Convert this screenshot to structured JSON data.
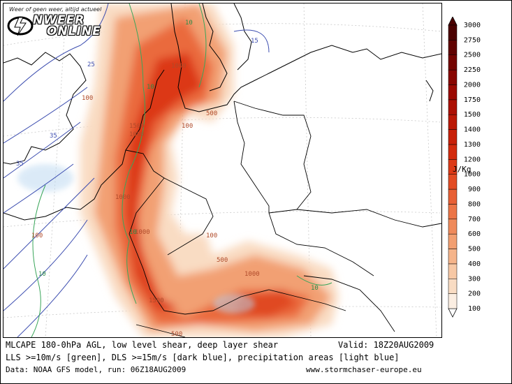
{
  "logo": {
    "tagline": "Weer of geen weer, altijd actueel",
    "line1": "NWEER",
    "line2": "ONLINE"
  },
  "caption": {
    "line1": "MLCAPE 180-0hPa AGL, low level shear, deep layer shear",
    "valid": "Valid: 18Z20AUG2009",
    "line2": "LLS >=10m/s [green], DLS >=15m/s [dark blue], precipitation areas [light blue]",
    "line3": "Data: NOAA GFS model, run: 06Z18AUG2009",
    "source": "www.stormchaser-europe.eu"
  },
  "legend": {
    "unit": "J/Kg",
    "levels": [
      "100",
      "200",
      "300",
      "400",
      "500",
      "600",
      "700",
      "800",
      "900",
      "1000",
      "1200",
      "1300",
      "1400",
      "1500",
      "1750",
      "2000",
      "2250",
      "2500",
      "2750",
      "3000"
    ],
    "colors": [
      "#fbeee2",
      "#f9dcc3",
      "#f7c8a5",
      "#f5b48a",
      "#f29f71",
      "#ef8a5b",
      "#ec7547",
      "#e86035",
      "#e34c24",
      "#dd3a17",
      "#d32b0d",
      "#c82008",
      "#bb1805",
      "#ac1003",
      "#9b0a02",
      "#880601",
      "#740400",
      "#600200",
      "#4b0100"
    ]
  },
  "map_labels": {
    "cape": [
      "1000",
      "1000",
      "1500",
      "1000",
      "100",
      "1000",
      "1500",
      "500",
      "500",
      "1000",
      "100",
      "500"
    ],
    "lls": [
      "10",
      "10",
      "10",
      "10",
      "10"
    ],
    "dls": [
      "25",
      "35",
      "35",
      "15"
    ],
    "cape100": [
      "100",
      "100"
    ]
  }
}
